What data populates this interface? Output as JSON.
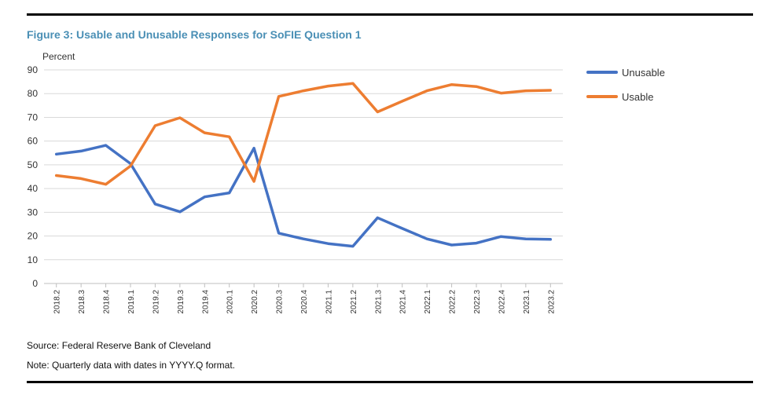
{
  "figure": {
    "title": "Figure 3: Usable and Unusable Responses for SoFIE Question 1",
    "source": "Source: Federal Reserve Bank of Cleveland",
    "note": "Note: Quarterly data with dates in YYYY.Q format."
  },
  "chart_data": {
    "type": "line",
    "ylabel": "Percent",
    "xlabel": "",
    "ylim": [
      0,
      90
    ],
    "yticks": [
      0,
      10,
      20,
      30,
      40,
      50,
      60,
      70,
      80,
      90
    ],
    "grid": true,
    "legend_position": "right",
    "categories": [
      "2018.2",
      "2018.3",
      "2018.4",
      "2019.1",
      "2019.2",
      "2019.3",
      "2019.4",
      "2020.1",
      "2020.2",
      "2020.3",
      "2020.4",
      "2021.1",
      "2021.2",
      "2021.3",
      "2021.4",
      "2022.1",
      "2022.2",
      "2022.3",
      "2022.4",
      "2023.1",
      "2023.2"
    ],
    "series": [
      {
        "name": "Unusable",
        "color": "#4472c4",
        "values": [
          54.5,
          55.8,
          58.2,
          50.5,
          33.5,
          30.2,
          36.5,
          38.2,
          57.0,
          21.2,
          18.8,
          16.8,
          15.7,
          27.7,
          23.2,
          18.8,
          16.2,
          17.0,
          19.8,
          18.8,
          18.6
        ]
      },
      {
        "name": "Usable",
        "color": "#ed7d31",
        "values": [
          45.5,
          44.2,
          41.8,
          49.5,
          66.5,
          69.8,
          63.5,
          61.8,
          43.0,
          78.8,
          81.2,
          83.2,
          84.3,
          72.3,
          76.8,
          81.2,
          83.8,
          83.0,
          80.2,
          81.2,
          81.4
        ]
      }
    ]
  }
}
